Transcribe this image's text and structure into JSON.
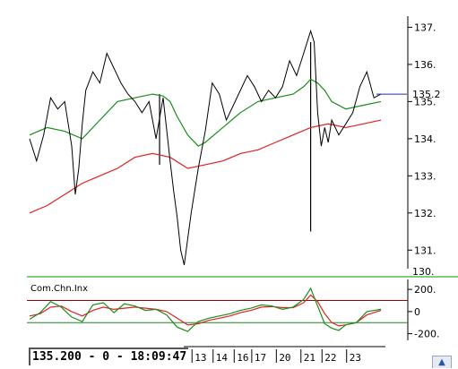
{
  "status": {
    "readout": "135.200 - 0 - 18:09:47"
  },
  "colors": {
    "price": "#000000",
    "ma_fast": "#1a8c1a",
    "ma_slow": "#e02020",
    "last_price_line": "#2030a0",
    "osc_fast": "#1a8c1a",
    "osc_slow": "#e02020",
    "osc_upper": "#a00000",
    "osc_lower": "#1a8c1a",
    "separator": "#55bb55"
  },
  "chart_data": [
    {
      "type": "line",
      "title": "",
      "ylim": [
        130.5,
        137.3
      ],
      "y_ticks": [
        "137.",
        "136.",
        "135.",
        "134.",
        "133.",
        "132.",
        "131."
      ],
      "y_tick_values": [
        137,
        136,
        135,
        134,
        133,
        132,
        131
      ],
      "partial_tick": {
        "label": "130.",
        "value": 130
      },
      "last_price": {
        "label": "135.2",
        "value": 135.2
      },
      "x_labels": [
        "0",
        "13",
        "14",
        "16",
        "17",
        "20",
        "21",
        "22",
        "23"
      ],
      "x_label_positions": [
        0.42,
        0.47,
        0.53,
        0.59,
        0.64,
        0.71,
        0.78,
        0.84,
        0.91
      ],
      "grid": false,
      "series": [
        {
          "role": "price",
          "x": [
            0.0,
            0.02,
            0.04,
            0.06,
            0.08,
            0.1,
            0.12,
            0.13,
            0.14,
            0.15,
            0.16,
            0.18,
            0.2,
            0.22,
            0.24,
            0.26,
            0.28,
            0.3,
            0.32,
            0.34,
            0.36,
            0.38,
            0.4,
            0.41,
            0.42,
            0.43,
            0.44,
            0.46,
            0.48,
            0.5,
            0.52,
            0.54,
            0.56,
            0.58,
            0.6,
            0.62,
            0.64,
            0.66,
            0.68,
            0.7,
            0.72,
            0.74,
            0.76,
            0.78,
            0.8,
            0.81,
            0.82,
            0.83,
            0.84,
            0.85,
            0.86,
            0.88,
            0.9,
            0.92,
            0.94,
            0.96,
            0.98,
            1.0
          ],
          "values": [
            134.0,
            133.4,
            134.1,
            135.1,
            134.8,
            135.0,
            133.8,
            132.5,
            133.2,
            134.4,
            135.3,
            135.8,
            135.5,
            136.3,
            135.9,
            135.5,
            135.2,
            135.0,
            134.7,
            135.0,
            134.0,
            135.1,
            133.4,
            132.6,
            131.9,
            131.0,
            130.6,
            132.0,
            133.2,
            134.2,
            135.5,
            135.2,
            134.5,
            134.9,
            135.3,
            135.7,
            135.4,
            135.0,
            135.3,
            135.1,
            135.4,
            136.1,
            135.7,
            136.3,
            136.9,
            136.6,
            134.7,
            133.8,
            134.3,
            133.9,
            134.5,
            134.1,
            134.4,
            134.7,
            135.4,
            135.8,
            135.1,
            135.2
          ]
        },
        {
          "role": "ma_fast",
          "x": [
            0.0,
            0.05,
            0.1,
            0.15,
            0.2,
            0.25,
            0.3,
            0.35,
            0.38,
            0.4,
            0.42,
            0.45,
            0.48,
            0.5,
            0.55,
            0.6,
            0.65,
            0.7,
            0.75,
            0.78,
            0.8,
            0.82,
            0.84,
            0.86,
            0.9,
            0.95,
            1.0
          ],
          "values": [
            134.1,
            134.3,
            134.2,
            134.0,
            134.5,
            135.0,
            135.1,
            135.2,
            135.15,
            135.0,
            134.6,
            134.1,
            133.8,
            133.9,
            134.3,
            134.7,
            135.0,
            135.1,
            135.2,
            135.4,
            135.6,
            135.5,
            135.3,
            135.0,
            134.8,
            134.9,
            135.0
          ]
        },
        {
          "role": "ma_slow",
          "x": [
            0.0,
            0.05,
            0.1,
            0.15,
            0.2,
            0.25,
            0.3,
            0.35,
            0.4,
            0.45,
            0.5,
            0.55,
            0.6,
            0.65,
            0.7,
            0.75,
            0.8,
            0.85,
            0.9,
            0.95,
            1.0
          ],
          "values": [
            132.0,
            132.2,
            132.5,
            132.8,
            133.0,
            133.2,
            133.5,
            133.6,
            133.5,
            133.2,
            133.3,
            133.4,
            133.6,
            133.7,
            133.9,
            134.1,
            134.3,
            134.4,
            134.3,
            134.4,
            134.5
          ]
        }
      ],
      "annotations": [
        {
          "kind": "spike",
          "x": 0.37,
          "from": 133.3,
          "to": 135.2
        },
        {
          "kind": "spike",
          "x": 0.8,
          "from": 131.5,
          "to": 136.6
        }
      ]
    },
    {
      "type": "line",
      "title": "Com.Chn.Inx",
      "ylim": [
        -260,
        290
      ],
      "y_ticks": [
        "200.",
        "0",
        "-200."
      ],
      "y_tick_values": [
        200,
        0,
        -200
      ],
      "levels": [
        {
          "role": "osc_upper",
          "value": 100
        },
        {
          "role": "osc_lower",
          "value": -100
        }
      ],
      "x_labels": [],
      "grid": false,
      "series": [
        {
          "role": "osc_fast",
          "x": [
            0.0,
            0.03,
            0.06,
            0.09,
            0.12,
            0.15,
            0.18,
            0.21,
            0.24,
            0.27,
            0.3,
            0.33,
            0.36,
            0.39,
            0.42,
            0.45,
            0.48,
            0.51,
            0.54,
            0.57,
            0.6,
            0.63,
            0.66,
            0.69,
            0.72,
            0.75,
            0.78,
            0.8,
            0.82,
            0.84,
            0.86,
            0.88,
            0.9,
            0.93,
            0.96,
            1.0
          ],
          "values": [
            -70,
            -10,
            90,
            40,
            -50,
            -90,
            60,
            80,
            -10,
            70,
            50,
            10,
            20,
            -30,
            -140,
            -180,
            -90,
            -60,
            -40,
            -20,
            10,
            30,
            60,
            50,
            20,
            40,
            110,
            210,
            50,
            -110,
            -150,
            -170,
            -120,
            -100,
            0,
            20
          ]
        },
        {
          "role": "osc_slow",
          "x": [
            0.0,
            0.03,
            0.06,
            0.09,
            0.12,
            0.15,
            0.18,
            0.21,
            0.24,
            0.27,
            0.3,
            0.33,
            0.36,
            0.39,
            0.42,
            0.45,
            0.48,
            0.51,
            0.54,
            0.57,
            0.6,
            0.63,
            0.66,
            0.69,
            0.72,
            0.75,
            0.78,
            0.8,
            0.82,
            0.84,
            0.86,
            0.88,
            0.9,
            0.93,
            0.96,
            1.0
          ],
          "values": [
            -40,
            -20,
            40,
            50,
            0,
            -40,
            10,
            40,
            20,
            30,
            40,
            30,
            20,
            0,
            -60,
            -120,
            -110,
            -80,
            -60,
            -40,
            -10,
            10,
            40,
            45,
            35,
            35,
            80,
            150,
            90,
            -20,
            -100,
            -130,
            -120,
            -100,
            -30,
            10
          ]
        }
      ]
    }
  ]
}
